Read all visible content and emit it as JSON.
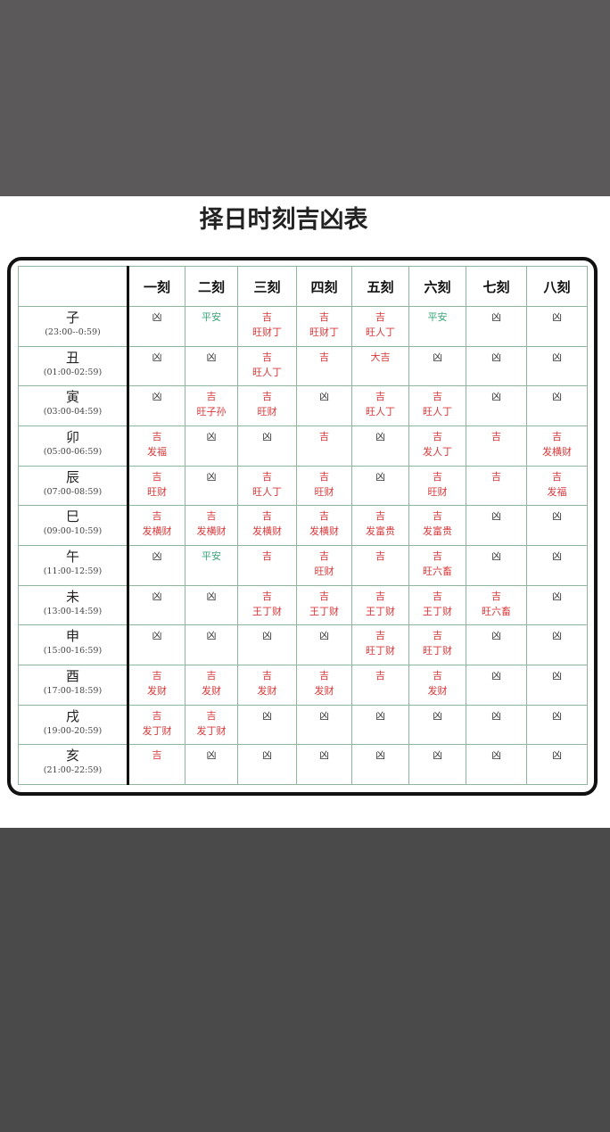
{
  "header": {
    "title": "择日时刻吉凶表"
  },
  "table": {
    "columns": [
      "一刻",
      "二刻",
      "三刻",
      "四刻",
      "五刻",
      "六刻",
      "七刻",
      "八刻"
    ],
    "rows": [
      {
        "branch": "子",
        "time": "(23:00--0:59)",
        "cells": [
          {
            "text": [
              "凶"
            ],
            "color": "#333333"
          },
          {
            "text": [
              "平安"
            ],
            "color": "#3aa77a"
          },
          {
            "text": [
              "吉",
              "旺财丁"
            ],
            "color": "#d9383a"
          },
          {
            "text": [
              "吉",
              "旺财丁"
            ],
            "color": "#d9383a"
          },
          {
            "text": [
              "吉",
              "旺人丁"
            ],
            "color": "#d9383a"
          },
          {
            "text": [
              "平安"
            ],
            "color": "#3aa77a"
          },
          {
            "text": [
              "凶"
            ],
            "color": "#333333"
          },
          {
            "text": [
              "凶"
            ],
            "color": "#333333"
          }
        ]
      },
      {
        "branch": "丑",
        "time": "(01:00-02:59)",
        "cells": [
          {
            "text": [
              "凶"
            ],
            "color": "#333333"
          },
          {
            "text": [
              "凶"
            ],
            "color": "#333333"
          },
          {
            "text": [
              "吉",
              "旺人丁"
            ],
            "color": "#d9383a"
          },
          {
            "text": [
              "吉"
            ],
            "color": "#d9383a"
          },
          {
            "text": [
              "大吉"
            ],
            "color": "#d9383a"
          },
          {
            "text": [
              "凶"
            ],
            "color": "#333333"
          },
          {
            "text": [
              "凶"
            ],
            "color": "#333333"
          },
          {
            "text": [
              "凶"
            ],
            "color": "#333333"
          }
        ]
      },
      {
        "branch": "寅",
        "time": "(03:00-04:59)",
        "cells": [
          {
            "text": [
              "凶"
            ],
            "color": "#333333"
          },
          {
            "text": [
              "吉",
              "旺子孙"
            ],
            "color": "#d9383a"
          },
          {
            "text": [
              "吉",
              "旺财"
            ],
            "color": "#d9383a"
          },
          {
            "text": [
              "凶"
            ],
            "color": "#333333"
          },
          {
            "text": [
              "吉",
              "旺人丁"
            ],
            "color": "#d9383a"
          },
          {
            "text": [
              "吉",
              "旺人丁"
            ],
            "color": "#d9383a"
          },
          {
            "text": [
              "凶"
            ],
            "color": "#333333"
          },
          {
            "text": [
              "凶"
            ],
            "color": "#333333"
          }
        ]
      },
      {
        "branch": "卯",
        "time": "(05:00-06:59)",
        "cells": [
          {
            "text": [
              "吉",
              "发福"
            ],
            "color": "#d9383a"
          },
          {
            "text": [
              "凶"
            ],
            "color": "#333333"
          },
          {
            "text": [
              "凶"
            ],
            "color": "#333333"
          },
          {
            "text": [
              "吉"
            ],
            "color": "#d9383a"
          },
          {
            "text": [
              "凶"
            ],
            "color": "#333333"
          },
          {
            "text": [
              "吉",
              "发人丁"
            ],
            "color": "#d9383a"
          },
          {
            "text": [
              "吉"
            ],
            "color": "#d9383a"
          },
          {
            "text": [
              "吉",
              "发横财"
            ],
            "color": "#d9383a"
          }
        ]
      },
      {
        "branch": "辰",
        "time": "(07:00-08:59)",
        "cells": [
          {
            "text": [
              "吉",
              "旺财"
            ],
            "color": "#d9383a"
          },
          {
            "text": [
              "凶"
            ],
            "color": "#333333"
          },
          {
            "text": [
              "吉",
              "旺人丁"
            ],
            "color": "#d9383a"
          },
          {
            "text": [
              "吉",
              "旺财"
            ],
            "color": "#d9383a"
          },
          {
            "text": [
              "凶"
            ],
            "color": "#333333"
          },
          {
            "text": [
              "吉",
              "旺财"
            ],
            "color": "#d9383a"
          },
          {
            "text": [
              "吉"
            ],
            "color": "#d9383a"
          },
          {
            "text": [
              "吉",
              "发福"
            ],
            "color": "#d9383a"
          }
        ]
      },
      {
        "branch": "巳",
        "time": "(09:00-10:59)",
        "cells": [
          {
            "text": [
              "吉",
              "发横财"
            ],
            "color": "#d9383a"
          },
          {
            "text": [
              "吉",
              "发横财"
            ],
            "color": "#d9383a"
          },
          {
            "text": [
              "吉",
              "发横财"
            ],
            "color": "#d9383a"
          },
          {
            "text": [
              "吉",
              "发横财"
            ],
            "color": "#d9383a"
          },
          {
            "text": [
              "吉",
              "发富贵"
            ],
            "color": "#d9383a"
          },
          {
            "text": [
              "吉",
              "发富贵"
            ],
            "color": "#d9383a"
          },
          {
            "text": [
              "凶"
            ],
            "color": "#333333"
          },
          {
            "text": [
              "凶"
            ],
            "color": "#333333"
          }
        ]
      },
      {
        "branch": "午",
        "time": "(11:00-12:59)",
        "cells": [
          {
            "text": [
              "凶"
            ],
            "color": "#333333"
          },
          {
            "text": [
              "平安"
            ],
            "color": "#3aa77a"
          },
          {
            "text": [
              "吉"
            ],
            "color": "#d9383a"
          },
          {
            "text": [
              "吉",
              "旺财"
            ],
            "color": "#d9383a"
          },
          {
            "text": [
              "吉"
            ],
            "color": "#d9383a"
          },
          {
            "text": [
              "吉",
              "旺六畜"
            ],
            "color": "#d9383a"
          },
          {
            "text": [
              "凶"
            ],
            "color": "#333333"
          },
          {
            "text": [
              "凶"
            ],
            "color": "#333333"
          }
        ]
      },
      {
        "branch": "未",
        "time": "(13:00-14:59)",
        "cells": [
          {
            "text": [
              "凶"
            ],
            "color": "#333333"
          },
          {
            "text": [
              "凶"
            ],
            "color": "#333333"
          },
          {
            "text": [
              "吉",
              "王丁财"
            ],
            "color": "#d9383a"
          },
          {
            "text": [
              "吉",
              "王丁财"
            ],
            "color": "#d9383a"
          },
          {
            "text": [
              "吉",
              "王丁财"
            ],
            "color": "#d9383a"
          },
          {
            "text": [
              "吉",
              "王丁财"
            ],
            "color": "#d9383a"
          },
          {
            "text": [
              "吉",
              "旺六畜"
            ],
            "color": "#d9383a"
          },
          {
            "text": [
              "凶"
            ],
            "color": "#333333"
          }
        ]
      },
      {
        "branch": "申",
        "time": "(15:00-16:59)",
        "cells": [
          {
            "text": [
              "凶"
            ],
            "color": "#333333"
          },
          {
            "text": [
              "凶"
            ],
            "color": "#333333"
          },
          {
            "text": [
              "凶"
            ],
            "color": "#333333"
          },
          {
            "text": [
              "凶"
            ],
            "color": "#333333"
          },
          {
            "text": [
              "吉",
              "旺丁财"
            ],
            "color": "#d9383a"
          },
          {
            "text": [
              "吉",
              "旺丁财"
            ],
            "color": "#d9383a"
          },
          {
            "text": [
              "凶"
            ],
            "color": "#333333"
          },
          {
            "text": [
              "凶"
            ],
            "color": "#333333"
          }
        ]
      },
      {
        "branch": "酉",
        "time": "(17:00-18:59)",
        "cells": [
          {
            "text": [
              "吉",
              "发财"
            ],
            "color": "#d9383a"
          },
          {
            "text": [
              "吉",
              "发财"
            ],
            "color": "#d9383a"
          },
          {
            "text": [
              "吉",
              "发财"
            ],
            "color": "#d9383a"
          },
          {
            "text": [
              "吉",
              "发财"
            ],
            "color": "#d9383a"
          },
          {
            "text": [
              "吉"
            ],
            "color": "#d9383a"
          },
          {
            "text": [
              "吉",
              "发财"
            ],
            "color": "#d9383a"
          },
          {
            "text": [
              "凶"
            ],
            "color": "#333333"
          },
          {
            "text": [
              "凶"
            ],
            "color": "#333333"
          }
        ]
      },
      {
        "branch": "戌",
        "time": "(19:00-20:59)",
        "cells": [
          {
            "text": [
              "吉",
              "发丁财"
            ],
            "color": "#d9383a"
          },
          {
            "text": [
              "吉",
              "发丁财"
            ],
            "color": "#d9383a"
          },
          {
            "text": [
              "凶"
            ],
            "color": "#333333"
          },
          {
            "text": [
              "凶"
            ],
            "color": "#333333"
          },
          {
            "text": [
              "凶"
            ],
            "color": "#333333"
          },
          {
            "text": [
              "凶"
            ],
            "color": "#333333"
          },
          {
            "text": [
              "凶"
            ],
            "color": "#333333"
          },
          {
            "text": [
              "凶"
            ],
            "color": "#333333"
          }
        ]
      },
      {
        "branch": "亥",
        "time": "(21:00-22:59)",
        "cells": [
          {
            "text": [
              "吉"
            ],
            "color": "#d9383a"
          },
          {
            "text": [
              "凶"
            ],
            "color": "#333333"
          },
          {
            "text": [
              "凶"
            ],
            "color": "#333333"
          },
          {
            "text": [
              "凶"
            ],
            "color": "#333333"
          },
          {
            "text": [
              "凶"
            ],
            "color": "#333333"
          },
          {
            "text": [
              "凶"
            ],
            "color": "#333333"
          },
          {
            "text": [
              "凶"
            ],
            "color": "#333333"
          },
          {
            "text": [
              "凶"
            ],
            "color": "#333333"
          }
        ]
      }
    ]
  }
}
